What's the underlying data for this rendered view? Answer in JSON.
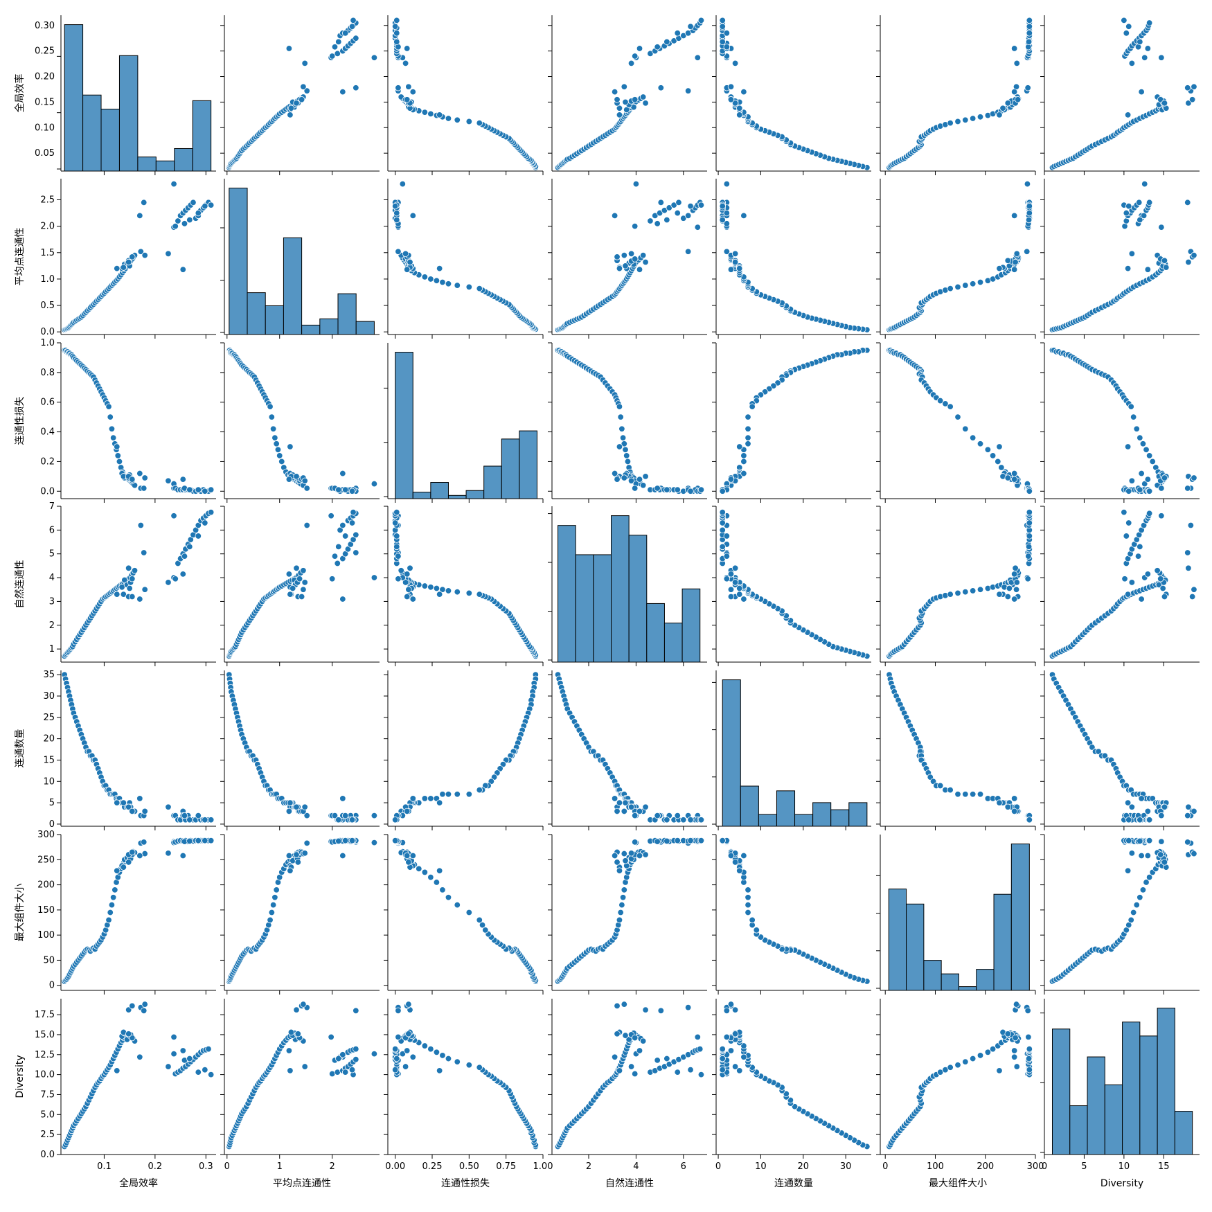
{
  "chart_data": {
    "type": "scatter",
    "variables": [
      {
        "label": "全局效率",
        "range": [
          0.015,
          0.32
        ],
        "ticks": [
          0.05,
          0.1,
          0.15,
          0.2,
          0.25,
          0.3
        ],
        "tick_labels_y": [
          "0.05",
          "0.10",
          "0.15",
          "0.20",
          "0.25",
          "0.30"
        ],
        "tick_labels_x": [
          "0.1",
          "0.2",
          "0.3"
        ],
        "ticks_x": [
          0.1,
          0.2,
          0.3
        ]
      },
      {
        "label": "平均点连通性",
        "range": [
          -0.05,
          2.9
        ],
        "ticks": [
          0.0,
          0.5,
          1.0,
          1.5,
          2.0,
          2.5
        ],
        "tick_labels_y": [
          "0.0",
          "0.5",
          "1.0",
          "1.5",
          "2.0",
          "2.5"
        ],
        "tick_labels_x": [
          "0",
          "1",
          "2"
        ],
        "ticks_x": [
          0,
          1,
          2
        ]
      },
      {
        "label": "连通性损失",
        "range": [
          -0.05,
          1.0
        ],
        "ticks": [
          0.0,
          0.2,
          0.4,
          0.6,
          0.8,
          1.0
        ],
        "tick_labels_y": [
          "0.0",
          "0.2",
          "0.4",
          "0.6",
          "0.8",
          "1.0"
        ],
        "tick_labels_x": [
          "0.00",
          "0.25",
          "0.50",
          "0.75",
          "1.00"
        ],
        "ticks_x": [
          0,
          0.25,
          0.5,
          0.75,
          1.0
        ]
      },
      {
        "label": "自然连通性",
        "range": [
          0.45,
          7.0
        ],
        "ticks": [
          1,
          2,
          3,
          4,
          5,
          6,
          7
        ],
        "tick_labels_y": [
          "1",
          "2",
          "3",
          "4",
          "5",
          "6",
          "7"
        ],
        "tick_labels_x": [
          "2",
          "4",
          "6"
        ],
        "ticks_x": [
          2,
          4,
          6
        ]
      },
      {
        "label": "连通数量",
        "range": [
          -0.5,
          36
        ],
        "ticks": [
          0,
          5,
          10,
          15,
          20,
          25,
          30,
          35
        ],
        "tick_labels_y": [
          "0",
          "5",
          "10",
          "15",
          "20",
          "25",
          "30",
          "35"
        ],
        "tick_labels_x": [
          "0",
          "10",
          "20",
          "30"
        ],
        "ticks_x": [
          0,
          10,
          20,
          30
        ]
      },
      {
        "label": "最大组件大小",
        "range": [
          -10,
          300
        ],
        "ticks": [
          0,
          50,
          100,
          150,
          200,
          250,
          300
        ],
        "tick_labels_y": [
          "0",
          "50",
          "100",
          "150",
          "200",
          "250",
          "300"
        ],
        "tick_labels_x": [
          "0",
          "100",
          "200",
          "300"
        ],
        "ticks_x": [
          0,
          100,
          200,
          300
        ]
      },
      {
        "label": "Diversity",
        "range": [
          0,
          19.5
        ],
        "ticks": [
          0.0,
          2.5,
          5.0,
          7.5,
          10.0,
          12.5,
          15.0,
          17.5
        ],
        "tick_labels_y": [
          "0.0",
          "2.5",
          "5.0",
          "7.5",
          "10.0",
          "12.5",
          "15.0",
          "17.5"
        ],
        "tick_labels_x": [
          "0",
          "5",
          "10",
          "15"
        ],
        "ticks_x": [
          0,
          5,
          10,
          15
        ]
      }
    ],
    "histograms": [
      {
        "edges": [
          0.022,
          0.058,
          0.094,
          0.13,
          0.166,
          0.202,
          0.238,
          0.274,
          0.31
        ],
        "counts": [
          26,
          13.5,
          11,
          20.5,
          2.5,
          1.8,
          4,
          12.5
        ]
      },
      {
        "edges": [
          0.04,
          0.385,
          0.73,
          1.075,
          1.42,
          1.765,
          2.11,
          2.455,
          2.8
        ],
        "counts": [
          28,
          8,
          5.5,
          18.5,
          1.8,
          3,
          7.8,
          2.5
        ]
      },
      {
        "edges": [
          0.0,
          0.12,
          0.24,
          0.36,
          0.48,
          0.6,
          0.72,
          0.84,
          0.96
        ],
        "counts": [
          27,
          1.2,
          3,
          0.6,
          1.5,
          6,
          11,
          12.5
        ]
      },
      {
        "edges": [
          0.7,
          1.45,
          2.2,
          2.95,
          3.7,
          4.45,
          5.2,
          5.95,
          6.7
        ],
        "counts": [
          14,
          11,
          11,
          15,
          13,
          6,
          4,
          7.5
        ]
      },
      {
        "edges": [
          1,
          5.25,
          9.5,
          13.75,
          18,
          22.25,
          26.5,
          30.75,
          35
        ],
        "counts": [
          31,
          8.5,
          2.5,
          7.5,
          2.5,
          5,
          3.5,
          5
        ]
      },
      {
        "edges": [
          7,
          42,
          77,
          112,
          147,
          182,
          217,
          252,
          288
        ],
        "counts": [
          13.5,
          11.5,
          4,
          2.2,
          0.5,
          2.8,
          12.8,
          19.5
        ]
      },
      {
        "edges": [
          1.0,
          3.2,
          5.4,
          7.6,
          9.8,
          12.0,
          14.2,
          16.4,
          18.6
        ],
        "counts": [
          9,
          3.5,
          7,
          5,
          9.5,
          8.5,
          10.5,
          3.1
        ]
      }
    ],
    "points": [
      [
        0.022,
        0.04,
        0.95,
        0.7,
        35,
        8,
        1.0
      ],
      [
        0.024,
        0.05,
        0.95,
        0.75,
        34,
        10,
        1.2
      ],
      [
        0.026,
        0.06,
        0.94,
        0.8,
        33,
        12,
        1.5
      ],
      [
        0.028,
        0.07,
        0.94,
        0.85,
        32,
        15,
        1.8
      ],
      [
        0.03,
        0.08,
        0.93,
        0.9,
        31,
        18,
        2.1
      ],
      [
        0.032,
        0.1,
        0.93,
        0.95,
        30,
        22,
        2.4
      ],
      [
        0.034,
        0.12,
        0.92,
        1.0,
        29,
        26,
        2.7
      ],
      [
        0.036,
        0.14,
        0.92,
        1.05,
        28,
        30,
        3.0
      ],
      [
        0.038,
        0.16,
        0.91,
        1.1,
        27,
        34,
        3.3
      ],
      [
        0.04,
        0.18,
        0.9,
        1.2,
        26,
        38,
        3.6
      ],
      [
        0.043,
        0.2,
        0.89,
        1.3,
        25,
        42,
        3.9
      ],
      [
        0.046,
        0.22,
        0.88,
        1.4,
        24,
        46,
        4.2
      ],
      [
        0.049,
        0.24,
        0.87,
        1.5,
        23,
        50,
        4.5
      ],
      [
        0.052,
        0.26,
        0.86,
        1.6,
        22,
        54,
        4.8
      ],
      [
        0.055,
        0.28,
        0.85,
        1.7,
        21,
        58,
        5.1
      ],
      [
        0.058,
        0.31,
        0.84,
        1.8,
        20,
        62,
        5.4
      ],
      [
        0.061,
        0.34,
        0.83,
        1.9,
        19,
        66,
        5.7
      ],
      [
        0.064,
        0.37,
        0.82,
        2.0,
        18,
        70,
        6.0
      ],
      [
        0.067,
        0.4,
        0.81,
        2.1,
        17,
        72,
        6.4
      ],
      [
        0.07,
        0.43,
        0.8,
        2.2,
        17,
        70,
        6.8
      ],
      [
        0.073,
        0.46,
        0.79,
        2.3,
        16,
        68,
        7.2
      ],
      [
        0.076,
        0.49,
        0.78,
        2.4,
        16,
        72,
        7.6
      ],
      [
        0.079,
        0.52,
        0.77,
        2.5,
        15,
        74,
        8.0
      ],
      [
        0.082,
        0.55,
        0.75,
        2.6,
        15,
        72,
        8.4
      ],
      [
        0.085,
        0.58,
        0.73,
        2.7,
        14,
        78,
        8.7
      ],
      [
        0.088,
        0.61,
        0.71,
        2.8,
        13,
        82,
        9.0
      ],
      [
        0.091,
        0.64,
        0.69,
        2.9,
        12,
        86,
        9.2
      ],
      [
        0.094,
        0.67,
        0.67,
        3.0,
        11,
        90,
        9.5
      ],
      [
        0.097,
        0.7,
        0.65,
        3.1,
        10,
        96,
        9.8
      ],
      [
        0.1,
        0.73,
        0.63,
        3.15,
        9,
        102,
        10.0
      ],
      [
        0.103,
        0.76,
        0.61,
        3.2,
        9,
        110,
        10.3
      ],
      [
        0.106,
        0.79,
        0.59,
        3.25,
        8,
        120,
        10.6
      ],
      [
        0.109,
        0.82,
        0.57,
        3.3,
        8,
        130,
        10.9
      ],
      [
        0.112,
        0.85,
        0.5,
        3.35,
        7,
        145,
        11.2
      ],
      [
        0.115,
        0.88,
        0.42,
        3.4,
        7,
        160,
        11.6
      ],
      [
        0.118,
        0.91,
        0.36,
        3.45,
        7,
        175,
        12.0
      ],
      [
        0.121,
        0.94,
        0.32,
        3.5,
        7,
        190,
        12.4
      ],
      [
        0.124,
        0.97,
        0.28,
        3.55,
        6,
        205,
        12.8
      ],
      [
        0.127,
        1.0,
        0.24,
        3.6,
        6,
        215,
        13.2
      ],
      [
        0.13,
        1.04,
        0.2,
        3.65,
        6,
        225,
        13.6
      ],
      [
        0.133,
        1.08,
        0.16,
        3.7,
        5,
        232,
        14.0
      ],
      [
        0.136,
        1.12,
        0.13,
        3.75,
        5,
        240,
        14.3
      ],
      [
        0.139,
        1.16,
        0.11,
        3.8,
        5,
        245,
        14.6
      ],
      [
        0.142,
        1.2,
        0.1,
        3.85,
        4,
        250,
        14.8
      ],
      [
        0.145,
        1.24,
        0.09,
        3.9,
        4,
        255,
        15.0
      ],
      [
        0.148,
        1.28,
        0.08,
        3.95,
        4,
        258,
        15.1
      ],
      [
        0.151,
        1.32,
        0.07,
        4.0,
        4,
        262,
        14.9
      ],
      [
        0.154,
        1.36,
        0.06,
        4.1,
        3,
        265,
        14.7
      ],
      [
        0.157,
        1.4,
        0.05,
        4.2,
        3,
        266,
        14.5
      ],
      [
        0.16,
        1.45,
        0.04,
        4.3,
        3,
        264,
        14.2
      ],
      [
        0.135,
        1.2,
        0.12,
        3.6,
        5,
        238,
        14.8
      ],
      [
        0.14,
        1.28,
        0.09,
        3.9,
        4,
        250,
        15.2
      ],
      [
        0.145,
        1.3,
        0.1,
        3.7,
        4,
        254,
        14.4
      ],
      [
        0.15,
        1.25,
        0.11,
        3.55,
        5,
        248,
        14.9
      ],
      [
        0.152,
        1.34,
        0.08,
        3.8,
        4,
        252,
        15.0
      ],
      [
        0.155,
        1.38,
        0.07,
        3.95,
        3,
        260,
        14.6
      ],
      [
        0.138,
        1.22,
        0.1,
        3.3,
        5,
        235,
        15.3
      ],
      [
        0.148,
        1.35,
        0.09,
        3.2,
        4,
        245,
        15.1
      ],
      [
        0.148,
        1.32,
        0.1,
        4.4,
        4,
        260,
        18.1
      ],
      [
        0.155,
        1.42,
        0.08,
        3.2,
        3,
        265,
        18.6
      ],
      [
        0.172,
        1.52,
        0.02,
        6.2,
        2,
        283,
        18.4
      ],
      [
        0.178,
        2.45,
        0.02,
        5.05,
        2,
        285,
        18.0
      ],
      [
        0.18,
        1.45,
        0.09,
        3.5,
        3,
        262,
        18.8
      ],
      [
        0.17,
        2.2,
        0.12,
        3.1,
        6,
        258,
        12.2
      ],
      [
        0.125,
        1.2,
        0.3,
        3.3,
        5,
        228,
        10.5
      ],
      [
        0.226,
        1.48,
        0.07,
        3.8,
        4,
        263,
        11.0
      ],
      [
        0.237,
        1.98,
        0.02,
        6.6,
        2,
        286,
        14.7
      ],
      [
        0.237,
        2.8,
        0.05,
        4.0,
        2,
        284,
        12.6
      ],
      [
        0.255,
        1.18,
        0.08,
        4.15,
        3,
        258,
        13.0
      ],
      [
        0.24,
        2.0,
        0.02,
        3.95,
        2,
        285,
        10.1
      ],
      [
        0.245,
        2.1,
        0.01,
        4.6,
        1,
        287,
        10.3
      ],
      [
        0.25,
        2.2,
        0.01,
        4.8,
        1,
        288,
        10.5
      ],
      [
        0.255,
        2.25,
        0.01,
        5.0,
        2,
        287,
        10.8
      ],
      [
        0.26,
        2.3,
        0.01,
        5.2,
        1,
        288,
        11.0
      ],
      [
        0.265,
        2.35,
        0.01,
        5.4,
        2,
        286,
        11.3
      ],
      [
        0.27,
        2.4,
        0.01,
        5.6,
        1,
        288,
        11.6
      ],
      [
        0.275,
        2.45,
        0.0,
        5.8,
        1,
        287,
        11.9
      ],
      [
        0.28,
        2.15,
        0.0,
        6.0,
        1,
        288,
        12.2
      ],
      [
        0.285,
        2.2,
        0.01,
        6.2,
        2,
        287,
        12.5
      ],
      [
        0.29,
        2.3,
        0.0,
        6.4,
        1,
        288,
        12.8
      ],
      [
        0.295,
        2.35,
        0.01,
        6.5,
        1,
        288,
        13.0
      ],
      [
        0.3,
        2.4,
        0.0,
        6.6,
        1,
        288,
        13.1
      ],
      [
        0.305,
        2.45,
        0.0,
        6.7,
        1,
        288,
        13.2
      ],
      [
        0.31,
        2.4,
        0.01,
        6.75,
        1,
        288,
        10.0
      ],
      [
        0.258,
        2.05,
        0.02,
        4.9,
        2,
        286,
        11.8
      ],
      [
        0.268,
        2.12,
        0.01,
        5.3,
        1,
        287,
        12.0
      ],
      [
        0.285,
        2.25,
        0.01,
        5.75,
        2,
        288,
        10.3
      ],
      [
        0.298,
        2.38,
        0.0,
        6.3,
        1,
        288,
        10.6
      ]
    ]
  }
}
